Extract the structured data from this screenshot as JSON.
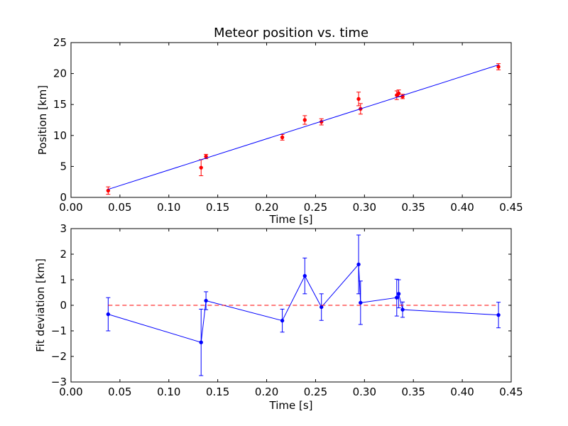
{
  "colors": {
    "data_points": "#ff0000",
    "fit_line": "#0000ff",
    "zero_line": "#ff0000",
    "axes": "#000000"
  },
  "chart_data": [
    {
      "type": "scatter",
      "title": "Meteor position vs. time",
      "xlabel": "Time [s]",
      "ylabel": "Position [km]",
      "xlim": [
        0.0,
        0.45
      ],
      "ylim": [
        0,
        25
      ],
      "xticks": [
        "0.00",
        "0.05",
        "0.10",
        "0.15",
        "0.20",
        "0.25",
        "0.30",
        "0.35",
        "0.40",
        "0.45"
      ],
      "yticks": [
        "0",
        "5",
        "10",
        "15",
        "20",
        "25"
      ],
      "grid": false,
      "series": [
        {
          "style": "points_with_error_bars",
          "color": "#ff0000",
          "x": [
            0.038,
            0.133,
            0.138,
            0.216,
            0.239,
            0.256,
            0.294,
            0.296,
            0.333,
            0.335,
            0.339,
            0.437
          ],
          "y": [
            1.1,
            4.8,
            6.6,
            9.7,
            12.5,
            12.2,
            15.9,
            14.3,
            16.5,
            16.8,
            16.3,
            21.1
          ],
          "yerr": [
            0.6,
            1.3,
            0.35,
            0.45,
            0.7,
            0.5,
            1.1,
            0.85,
            0.7,
            0.55,
            0.35,
            0.5
          ]
        },
        {
          "style": "line",
          "color": "#0000ff",
          "x": [
            0.038,
            0.437
          ],
          "y": [
            1.3,
            21.4
          ]
        }
      ]
    },
    {
      "type": "line",
      "title": "",
      "xlabel": "Time [s]",
      "ylabel": "Fit deviation [km]",
      "xlim": [
        0.0,
        0.45
      ],
      "ylim": [
        -3,
        3
      ],
      "xticks": [
        "0.00",
        "0.05",
        "0.10",
        "0.15",
        "0.20",
        "0.25",
        "0.30",
        "0.35",
        "0.40",
        "0.45"
      ],
      "yticks": [
        "−3",
        "−2",
        "−1",
        "0",
        "1",
        "2",
        "3"
      ],
      "grid": false,
      "series": [
        {
          "style": "line_with_points_and_error_bars",
          "color": "#0000ff",
          "x": [
            0.038,
            0.133,
            0.138,
            0.216,
            0.239,
            0.256,
            0.294,
            0.296,
            0.333,
            0.335,
            0.339,
            0.437
          ],
          "y": [
            -0.35,
            -1.45,
            0.18,
            -0.6,
            1.15,
            -0.07,
            1.6,
            0.1,
            0.3,
            0.45,
            -0.17,
            -0.38
          ],
          "yerr": [
            0.65,
            1.3,
            0.35,
            0.45,
            0.7,
            0.52,
            1.15,
            0.85,
            0.72,
            0.55,
            0.3,
            0.5
          ]
        },
        {
          "style": "dashed_reference",
          "color": "#ff0000",
          "x": [
            0.038,
            0.437
          ],
          "y": [
            0,
            0
          ]
        }
      ]
    }
  ]
}
